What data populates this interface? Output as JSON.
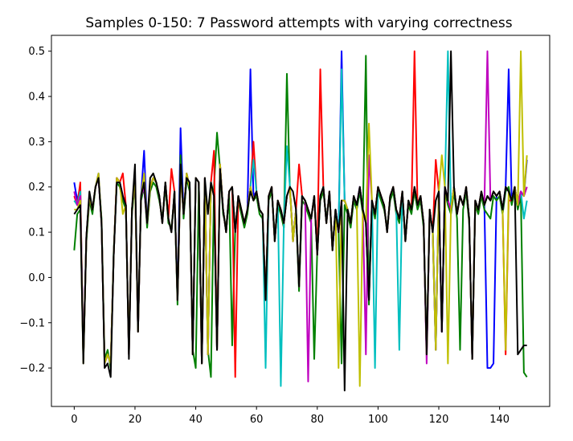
{
  "chart_data": {
    "type": "line",
    "title": "Samples 0-150: 7 Password attempts with varying correctness",
    "xlabel": "",
    "ylabel": "",
    "xlim": [
      -7.5,
      156.5
    ],
    "ylim": [
      -0.285,
      0.535
    ],
    "x_ticks": [
      0,
      20,
      40,
      60,
      80,
      100,
      120,
      140
    ],
    "y_ticks": [
      -0.2,
      -0.1,
      0.0,
      0.1,
      0.2,
      0.3,
      0.4,
      0.5
    ],
    "grid": false,
    "legend": "none",
    "series_note": "7 series plotted over samples 0-149; no legend shown",
    "series": [
      {
        "color": "#0000ff",
        "values": [
          0.21,
          0.17,
          0.2,
          -0.18,
          0.09,
          0.18,
          0.15,
          0.2,
          0.23,
          0.12,
          -0.19,
          -0.17,
          -0.19,
          0.05,
          0.22,
          0.21,
          0.18,
          0.16,
          -0.17,
          0.15,
          0.22,
          -0.12,
          0.18,
          0.28,
          0.12,
          0.2,
          0.22,
          0.21,
          0.18,
          0.12,
          0.21,
          0.13,
          0.1,
          0.19,
          -0.05,
          0.33,
          0.14,
          0.23,
          0.2,
          -0.17,
          0.22,
          0.21,
          -0.19,
          0.22,
          -0.17,
          0.21,
          0.18,
          -0.16,
          0.25,
          0.15,
          0.1,
          0.19,
          0.2,
          0.1,
          0.18,
          0.15,
          0.12,
          0.15,
          0.46,
          0.18,
          0.19,
          0.15,
          0.14,
          -0.05,
          0.18,
          0.2,
          0.08,
          0.17,
          0.15,
          0.12,
          0.18,
          0.2,
          0.08,
          0.15,
          -0.02,
          0.18,
          0.17,
          0.15,
          0.13,
          0.18,
          0.05,
          0.18,
          0.2,
          0.12,
          0.19,
          0.06,
          0.15,
          0.1,
          0.5,
          0.17,
          0.15,
          0.12,
          0.18,
          0.16,
          0.2,
          0.15,
          0.12,
          -0.05,
          0.17,
          0.14,
          0.2,
          0.18,
          0.16,
          0.1,
          0.18,
          0.2,
          0.15,
          0.13,
          0.19,
          0.08,
          0.17,
          0.15,
          0.2,
          0.16,
          0.18,
          0.12,
          -0.17,
          0.15,
          0.1,
          -0.16,
          0.19,
          -0.12,
          0.2,
          0.17,
          0.15,
          0.2,
          0.14,
          0.18,
          0.16,
          0.2,
          0.13,
          -0.18,
          0.17,
          0.15,
          0.19,
          0.16,
          -0.2,
          -0.2,
          -0.19,
          0.18,
          0.19,
          0.15,
          0.2,
          0.46,
          0.17,
          0.2,
          0.16,
          0.19,
          0.18,
          0.26
        ]
      },
      {
        "color": "#008000",
        "values": [
          0.06,
          0.14,
          0.15,
          -0.18,
          0.08,
          0.17,
          0.14,
          0.2,
          0.22,
          0.13,
          -0.18,
          -0.16,
          -0.2,
          0.06,
          0.21,
          0.2,
          0.17,
          0.15,
          -0.16,
          0.14,
          0.21,
          -0.11,
          0.17,
          0.2,
          0.11,
          0.19,
          0.21,
          0.2,
          0.17,
          0.13,
          0.2,
          0.12,
          0.11,
          0.18,
          -0.06,
          0.27,
          0.13,
          0.22,
          0.19,
          -0.16,
          -0.2,
          0.2,
          -0.18,
          0.21,
          -0.16,
          -0.22,
          0.2,
          0.32,
          0.24,
          0.14,
          0.11,
          0.18,
          -0.15,
          0.11,
          0.17,
          0.14,
          0.11,
          0.14,
          0.2,
          0.17,
          0.18,
          0.14,
          0.13,
          -0.04,
          0.17,
          0.19,
          0.09,
          0.16,
          0.14,
          0.11,
          0.45,
          0.19,
          0.09,
          0.14,
          -0.03,
          0.17,
          0.16,
          0.14,
          0.12,
          -0.18,
          0.06,
          0.17,
          0.19,
          0.13,
          0.18,
          0.07,
          0.14,
          0.11,
          -0.19,
          0.16,
          0.14,
          0.11,
          0.17,
          0.15,
          0.19,
          0.14,
          0.49,
          -0.06,
          0.16,
          0.13,
          0.19,
          0.17,
          0.15,
          0.11,
          0.17,
          0.19,
          0.14,
          0.12,
          0.18,
          0.09,
          0.16,
          0.14,
          0.19,
          0.15,
          0.17,
          0.11,
          -0.16,
          0.14,
          0.11,
          -0.15,
          0.18,
          -0.11,
          0.19,
          0.16,
          0.14,
          0.19,
          0.13,
          -0.16,
          0.15,
          0.19,
          0.12,
          -0.17,
          0.16,
          0.14,
          0.18,
          0.15,
          0.14,
          0.13,
          0.18,
          0.17,
          0.18,
          0.14,
          0.19,
          0.2,
          0.16,
          0.19,
          0.15,
          0.18,
          -0.21,
          -0.22
        ]
      },
      {
        "color": "#ff0000",
        "values": [
          0.18,
          0.16,
          0.21,
          -0.18,
          0.09,
          0.18,
          0.15,
          0.2,
          0.22,
          0.12,
          -0.19,
          -0.17,
          -0.19,
          0.05,
          0.22,
          0.21,
          0.23,
          0.16,
          -0.17,
          0.15,
          0.22,
          -0.12,
          0.18,
          0.2,
          0.12,
          0.2,
          0.22,
          0.21,
          0.18,
          0.12,
          0.21,
          0.13,
          0.24,
          0.19,
          -0.05,
          0.23,
          0.14,
          0.23,
          0.2,
          -0.17,
          0.22,
          0.21,
          -0.19,
          0.22,
          -0.17,
          0.21,
          0.28,
          -0.16,
          0.25,
          0.15,
          0.1,
          0.19,
          0.2,
          -0.22,
          0.18,
          0.15,
          0.12,
          0.15,
          0.2,
          0.3,
          0.19,
          0.15,
          0.14,
          -0.05,
          0.18,
          0.2,
          0.08,
          0.17,
          0.15,
          0.12,
          0.18,
          0.2,
          0.08,
          0.15,
          0.25,
          0.18,
          0.17,
          0.15,
          0.13,
          0.18,
          0.05,
          0.46,
          0.2,
          0.12,
          0.19,
          0.06,
          0.15,
          0.1,
          0.17,
          0.17,
          0.15,
          0.12,
          0.18,
          0.16,
          0.2,
          0.15,
          0.12,
          -0.05,
          0.17,
          0.14,
          0.2,
          0.18,
          0.16,
          0.1,
          0.18,
          0.2,
          0.15,
          0.13,
          0.19,
          0.08,
          0.17,
          0.15,
          0.5,
          0.16,
          0.18,
          0.12,
          -0.17,
          0.15,
          0.1,
          0.26,
          0.19,
          -0.12,
          0.2,
          0.17,
          0.15,
          0.2,
          0.14,
          0.18,
          0.16,
          0.2,
          0.13,
          -0.18,
          0.17,
          0.15,
          0.19,
          0.16,
          0.18,
          0.17,
          0.19,
          0.18,
          0.19,
          0.15,
          -0.17,
          0.17,
          0.17,
          0.2,
          0.16,
          0.19,
          0.18,
          0.2
        ]
      },
      {
        "color": "#00bfbf",
        "values": [
          0.17,
          0.16,
          0.19,
          -0.18,
          0.09,
          0.18,
          0.15,
          0.2,
          0.22,
          0.12,
          -0.19,
          -0.17,
          -0.19,
          0.05,
          0.21,
          0.21,
          0.18,
          0.16,
          -0.17,
          0.15,
          0.22,
          -0.12,
          0.18,
          0.2,
          0.12,
          0.2,
          0.22,
          0.21,
          0.18,
          0.12,
          0.21,
          0.13,
          0.1,
          0.19,
          -0.05,
          0.23,
          0.14,
          0.23,
          0.2,
          -0.17,
          0.22,
          0.21,
          -0.19,
          0.22,
          -0.17,
          0.21,
          0.18,
          -0.16,
          0.25,
          0.15,
          0.1,
          0.19,
          0.2,
          0.1,
          0.18,
          0.15,
          0.12,
          0.15,
          0.2,
          0.26,
          0.19,
          0.15,
          0.14,
          -0.2,
          0.18,
          0.2,
          0.08,
          0.17,
          -0.24,
          0.12,
          0.29,
          0.2,
          0.08,
          0.15,
          -0.02,
          0.18,
          0.17,
          0.15,
          0.13,
          0.18,
          0.05,
          0.18,
          0.2,
          0.12,
          0.19,
          0.06,
          0.15,
          0.1,
          0.46,
          0.17,
          0.15,
          0.12,
          0.18,
          0.16,
          0.2,
          0.15,
          0.12,
          -0.05,
          0.17,
          -0.2,
          0.2,
          0.18,
          0.16,
          0.1,
          0.18,
          0.2,
          0.15,
          -0.16,
          0.19,
          0.08,
          0.17,
          0.15,
          0.2,
          0.16,
          0.18,
          0.12,
          -0.17,
          0.15,
          0.1,
          -0.16,
          0.19,
          -0.12,
          0.2,
          0.5,
          0.15,
          0.2,
          0.14,
          0.18,
          0.16,
          0.2,
          0.13,
          -0.18,
          0.17,
          0.15,
          0.19,
          0.16,
          0.18,
          0.17,
          0.19,
          0.18,
          0.19,
          0.15,
          0.2,
          0.19,
          0.17,
          0.2,
          0.16,
          0.19,
          0.13,
          0.17
        ]
      },
      {
        "color": "#bf00bf",
        "values": [
          0.19,
          0.16,
          0.18,
          -0.18,
          0.09,
          0.18,
          0.15,
          0.2,
          0.22,
          0.12,
          -0.19,
          -0.17,
          -0.19,
          0.05,
          0.22,
          0.21,
          0.18,
          0.16,
          -0.17,
          0.15,
          0.22,
          -0.12,
          0.18,
          0.2,
          0.12,
          0.2,
          0.22,
          0.21,
          0.18,
          0.12,
          0.21,
          0.13,
          0.1,
          0.19,
          -0.05,
          0.23,
          0.14,
          0.23,
          0.2,
          -0.17,
          0.22,
          0.21,
          -0.19,
          0.22,
          -0.17,
          0.21,
          0.18,
          -0.16,
          0.25,
          0.15,
          0.1,
          0.19,
          0.2,
          0.1,
          0.18,
          0.15,
          0.12,
          0.15,
          0.2,
          0.17,
          0.19,
          0.15,
          0.14,
          -0.05,
          0.18,
          0.2,
          0.08,
          0.17,
          0.15,
          0.12,
          0.18,
          0.2,
          0.08,
          0.15,
          -0.02,
          0.18,
          0.17,
          -0.23,
          0.13,
          0.18,
          0.05,
          0.18,
          0.2,
          0.12,
          0.19,
          0.06,
          0.15,
          0.1,
          0.17,
          0.17,
          0.15,
          0.12,
          0.18,
          0.16,
          0.2,
          0.15,
          -0.17,
          0.27,
          0.17,
          0.14,
          0.2,
          0.18,
          0.16,
          0.1,
          0.18,
          0.2,
          0.15,
          0.13,
          0.19,
          0.08,
          0.17,
          0.15,
          0.2,
          0.16,
          0.18,
          0.12,
          -0.19,
          0.15,
          0.1,
          -0.16,
          0.19,
          -0.12,
          0.2,
          0.17,
          0.15,
          0.2,
          0.14,
          0.18,
          0.16,
          0.2,
          0.13,
          -0.18,
          0.17,
          0.15,
          0.19,
          0.16,
          0.5,
          0.17,
          0.19,
          0.18,
          0.19,
          0.15,
          0.2,
          0.19,
          0.17,
          0.2,
          0.16,
          0.19,
          0.18,
          0.2
        ]
      },
      {
        "color": "#bfbf00",
        "values": [
          0.15,
          0.15,
          0.17,
          -0.19,
          0.09,
          0.18,
          0.15,
          0.2,
          0.23,
          0.12,
          -0.19,
          -0.17,
          -0.19,
          0.05,
          0.22,
          0.21,
          0.14,
          0.16,
          -0.17,
          0.15,
          0.22,
          -0.12,
          0.18,
          0.23,
          0.12,
          0.2,
          0.22,
          0.21,
          0.18,
          0.12,
          0.21,
          0.13,
          0.1,
          0.19,
          -0.05,
          0.23,
          0.14,
          0.23,
          0.2,
          -0.17,
          0.22,
          0.21,
          -0.19,
          0.22,
          -0.17,
          0.21,
          0.18,
          -0.16,
          0.25,
          0.15,
          0.1,
          0.19,
          0.2,
          0.1,
          0.18,
          0.15,
          0.12,
          0.15,
          0.2,
          0.17,
          0.19,
          0.15,
          0.14,
          -0.05,
          0.18,
          0.2,
          0.08,
          0.17,
          0.15,
          0.12,
          0.18,
          0.2,
          0.08,
          0.15,
          -0.02,
          0.18,
          0.17,
          0.15,
          0.13,
          0.18,
          0.05,
          0.18,
          0.2,
          0.12,
          0.19,
          0.06,
          0.15,
          -0.2,
          0.17,
          0.17,
          0.15,
          0.12,
          0.18,
          0.16,
          -0.24,
          0.15,
          0.12,
          0.34,
          0.17,
          0.14,
          0.2,
          0.18,
          0.16,
          0.1,
          0.18,
          0.2,
          0.15,
          0.13,
          0.19,
          0.08,
          0.17,
          0.15,
          0.2,
          0.16,
          0.18,
          0.12,
          -0.17,
          0.15,
          0.1,
          -0.16,
          0.19,
          0.27,
          0.2,
          -0.19,
          0.15,
          0.2,
          0.14,
          0.18,
          0.16,
          0.2,
          0.13,
          -0.18,
          0.17,
          0.15,
          0.19,
          0.16,
          0.18,
          0.17,
          0.19,
          0.18,
          0.19,
          0.15,
          -0.16,
          0.19,
          0.17,
          0.2,
          0.16,
          0.5,
          0.18,
          0.27
        ]
      },
      {
        "color": "#000000",
        "values": [
          0.14,
          0.15,
          0.16,
          -0.19,
          0.09,
          0.19,
          0.15,
          0.2,
          0.22,
          0.12,
          -0.2,
          -0.19,
          -0.22,
          0.05,
          0.21,
          0.21,
          0.18,
          0.16,
          -0.18,
          0.15,
          0.25,
          -0.12,
          0.18,
          0.21,
          0.12,
          0.22,
          0.23,
          0.21,
          0.18,
          0.12,
          0.21,
          0.13,
          0.1,
          0.19,
          -0.05,
          0.25,
          0.14,
          0.22,
          0.21,
          -0.17,
          0.22,
          0.21,
          -0.19,
          0.22,
          0.14,
          0.21,
          0.18,
          -0.16,
          0.24,
          0.15,
          0.1,
          0.19,
          0.2,
          0.1,
          0.18,
          0.15,
          0.12,
          0.15,
          0.19,
          0.17,
          0.19,
          0.15,
          0.14,
          -0.05,
          0.18,
          0.2,
          0.08,
          0.17,
          0.15,
          0.12,
          0.18,
          0.2,
          0.19,
          0.15,
          -0.02,
          0.18,
          0.17,
          0.15,
          0.13,
          0.18,
          0.05,
          0.18,
          0.2,
          0.12,
          0.19,
          0.06,
          0.15,
          0.1,
          0.17,
          -0.25,
          0.15,
          0.12,
          0.18,
          0.16,
          0.2,
          0.15,
          0.12,
          -0.05,
          0.17,
          0.14,
          0.2,
          0.18,
          0.16,
          0.1,
          0.18,
          0.2,
          0.15,
          0.13,
          0.19,
          0.08,
          0.17,
          0.15,
          0.2,
          0.16,
          0.18,
          0.12,
          -0.17,
          0.15,
          0.1,
          0.17,
          0.19,
          -0.12,
          0.2,
          0.17,
          0.5,
          0.2,
          0.14,
          0.18,
          0.16,
          0.2,
          0.13,
          -0.18,
          0.17,
          0.15,
          0.19,
          0.16,
          0.18,
          0.17,
          0.19,
          0.18,
          0.19,
          0.15,
          0.2,
          0.19,
          0.17,
          0.2,
          -0.17,
          -0.16,
          -0.15,
          -0.15
        ]
      }
    ]
  }
}
